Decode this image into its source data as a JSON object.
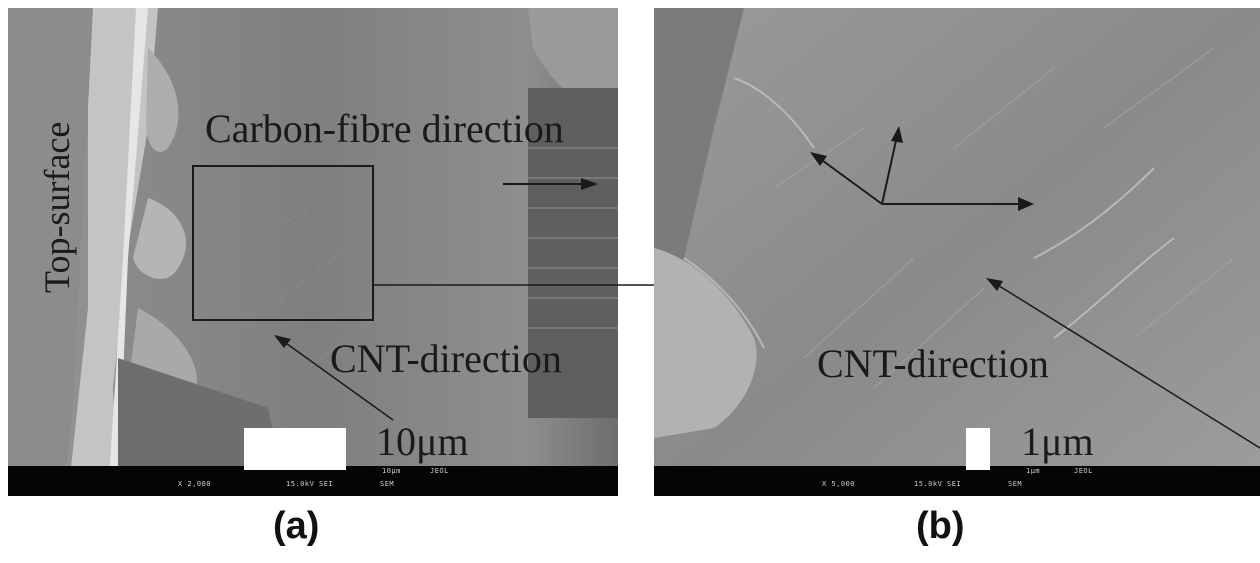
{
  "panel_a": {
    "top_surface_label": "Top-surface",
    "carbon_fibre_label": "Carbon-fibre direction",
    "cnt_label": "CNT-direction",
    "scale_label": "10μm",
    "databar": {
      "magnification": "X 2,000",
      "voltage": "15.0kV SEI",
      "mode": "SEM",
      "bar_length": "10μm",
      "brand": "JEOL"
    }
  },
  "panel_b": {
    "cnt_label": "CNT-direction",
    "scale_label": "1μm",
    "databar": {
      "magnification": "X 5,000",
      "voltage": "15.0kV SEI",
      "mode": "SEM",
      "bar_length": "1μm",
      "brand": "JEOL"
    }
  },
  "captions": {
    "a": "(a)",
    "b": "(b)"
  },
  "colors": {
    "sem_gray_mid": "#7a7a7a",
    "sem_gray_light": "#a8a8a8",
    "databar": "#050505",
    "annotation": "#1a1a1a"
  }
}
